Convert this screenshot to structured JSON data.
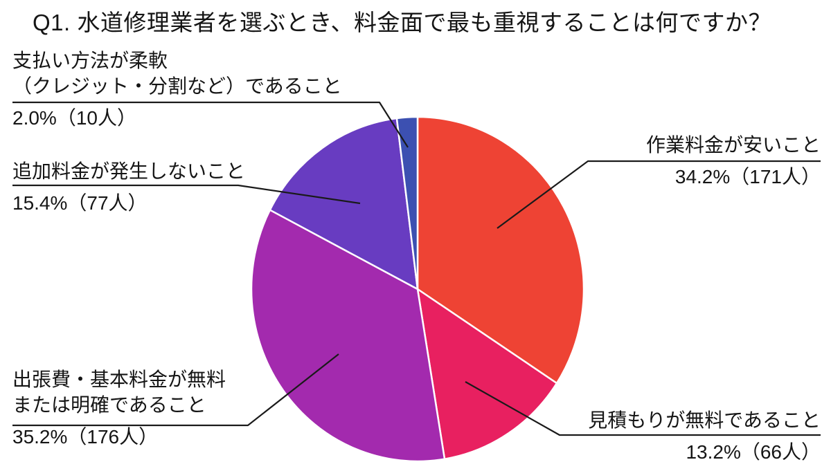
{
  "title": "Q1. 水道修理業者を選ぶとき、料金面で最も重視することは何ですか？",
  "background_color": "#ffffff",
  "text_color": "#151515",
  "leader_line_color": "#1a1a1a",
  "slice_border_color": "#ffffff",
  "chart_data": {
    "type": "pie",
    "title": "Q1. 水道修理業者を選ぶとき、料金面で最も重視することは何ですか？",
    "start_angle_deg": 0,
    "direction": "clockwise",
    "legend_position": "outside-callouts",
    "slices": [
      {
        "key": "cheap-work-fee",
        "label": "作業料金が安いこと",
        "percent": 34.2,
        "count": 171,
        "color": "#EE4334"
      },
      {
        "key": "free-estimate",
        "label": "見積もりが無料であること",
        "percent": 13.2,
        "count": 66,
        "color": "#E82060"
      },
      {
        "key": "base-fee-free-or-clear",
        "label": "出張費・基本料金が無料または明確であること",
        "percent": 35.2,
        "count": 176,
        "color": "#A32AAE"
      },
      {
        "key": "no-extra-fee",
        "label": "追加料金が発生しないこと",
        "percent": 15.4,
        "count": 77,
        "color": "#683CC1"
      },
      {
        "key": "flexible-payment",
        "label": "支払い方法が柔軟（クレジット・分割など）であること",
        "percent": 2.0,
        "count": 10,
        "color": "#3C50B1"
      }
    ]
  },
  "labels": {
    "flexible_payment": {
      "line1": "支払い方法が柔軟",
      "line2": "（クレジット・分割など）であること",
      "value": "2.0%（10人）"
    },
    "no_extra_fee": {
      "line1": "追加料金が発生しないこと",
      "value": "15.4%（77人）"
    },
    "base_fee_free": {
      "line1": "出張費・基本料金が無料",
      "line2": "または明確であること",
      "value": "35.2%（176人）"
    },
    "cheap_work_fee": {
      "line1": "作業料金が安いこと",
      "value": "34.2%（171人）"
    },
    "free_estimate": {
      "line1": "見積もりが無料であること",
      "value": "13.2%（66人）"
    }
  }
}
